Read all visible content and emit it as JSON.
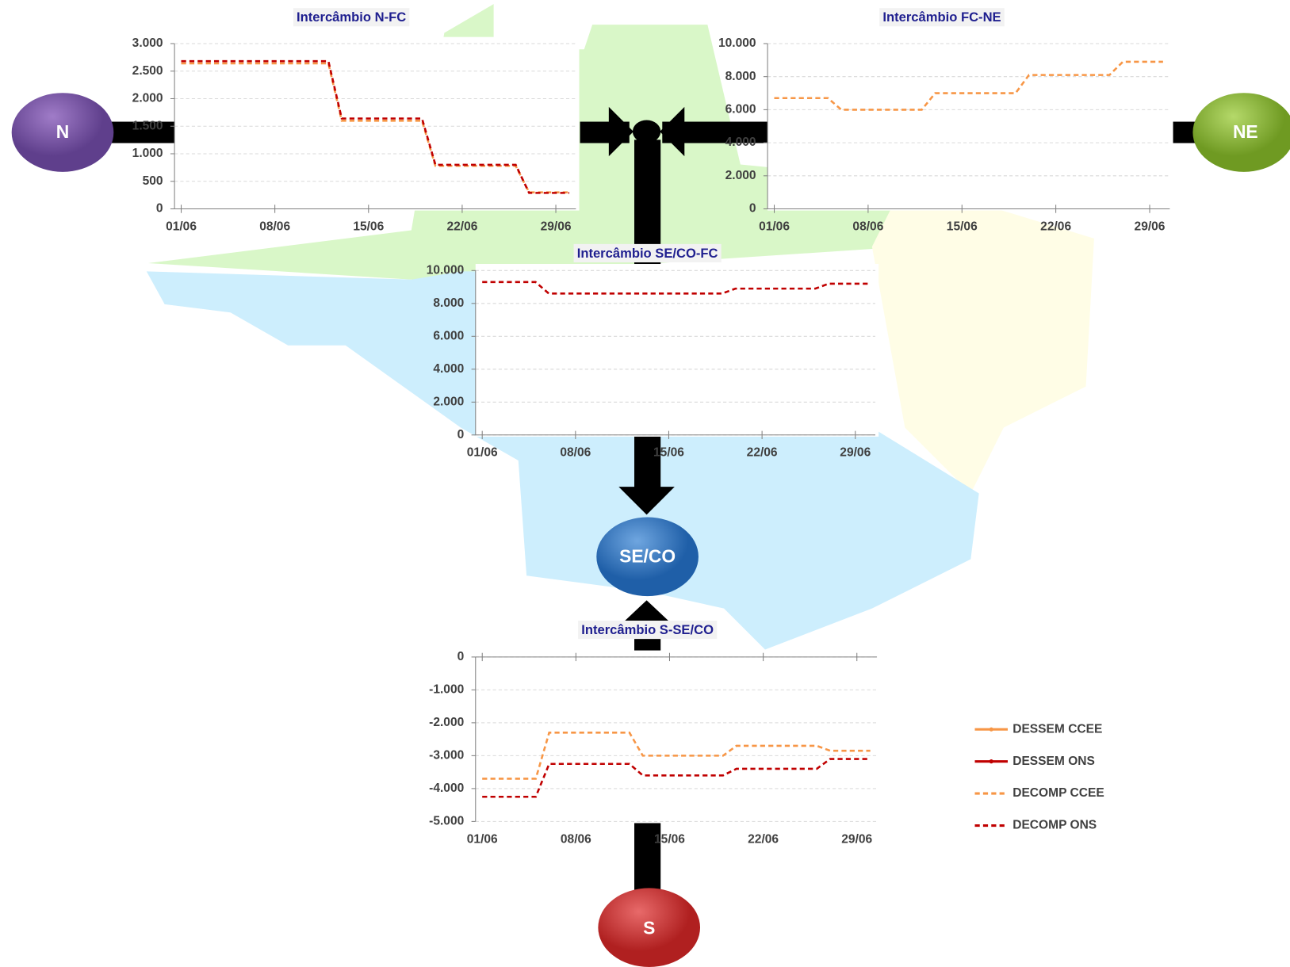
{
  "nodes": [
    {
      "label": "N"
    },
    {
      "label": "NE"
    },
    {
      "label": "SE/CO"
    },
    {
      "label": "S"
    }
  ],
  "chart_data": [
    {
      "type": "line",
      "title": "Intercâmbio N-FC",
      "categories": [
        "01/06",
        null,
        null,
        null,
        null,
        null,
        null,
        "08/06",
        null,
        null,
        null,
        null,
        null,
        null,
        "15/06",
        null,
        null,
        null,
        null,
        null,
        null,
        "22/06",
        null,
        null,
        null,
        null,
        null,
        null,
        "29/06",
        null
      ],
      "series": [
        {
          "name": "DECOMP CCEE",
          "color": "#f79646",
          "line_style": "dashed",
          "values": [
            2640,
            2640,
            2640,
            2640,
            2640,
            2640,
            2640,
            2640,
            2640,
            2640,
            2640,
            2640,
            1600,
            1600,
            1600,
            1600,
            1600,
            1600,
            1600,
            780,
            780,
            780,
            780,
            780,
            780,
            780,
            300,
            300,
            300,
            300
          ]
        },
        {
          "name": "DECOMP ONS",
          "color": "#c00000",
          "line_style": "dashed",
          "values": [
            2680,
            2680,
            2680,
            2680,
            2680,
            2680,
            2680,
            2680,
            2680,
            2680,
            2680,
            2680,
            1640,
            1640,
            1640,
            1640,
            1640,
            1640,
            1640,
            800,
            800,
            800,
            800,
            800,
            800,
            800,
            290,
            290,
            290,
            290
          ]
        }
      ],
      "ylim": [
        0,
        3000
      ],
      "yticks": [
        0,
        500,
        {
          "value": 1000,
          "label": "1.000"
        },
        {
          "value": 1500,
          "label": "1.500"
        },
        {
          "value": 2000,
          "label": "2.000"
        },
        {
          "value": 2500,
          "label": "2.500"
        },
        {
          "value": 3000,
          "label": "3.000"
        }
      ],
      "grid": true
    },
    {
      "type": "line",
      "title": "Intercâmbio FC-NE",
      "categories": [
        "01/06",
        null,
        null,
        null,
        null,
        null,
        null,
        "08/06",
        null,
        null,
        null,
        null,
        null,
        null,
        "15/06",
        null,
        null,
        null,
        null,
        null,
        null,
        "22/06",
        null,
        null,
        null,
        null,
        null,
        null,
        "29/06",
        null
      ],
      "series": [
        {
          "name": "DECOMP CCEE",
          "color": "#f79646",
          "line_style": "dashed",
          "values": [
            6700,
            6700,
            6700,
            6700,
            6700,
            6000,
            6000,
            6000,
            6000,
            6000,
            6000,
            6000,
            7000,
            7000,
            7000,
            7000,
            7000,
            7000,
            7000,
            8100,
            8100,
            8100,
            8100,
            8100,
            8100,
            8100,
            8900,
            8900,
            8900,
            8900
          ]
        }
      ],
      "ylim": [
        0,
        10000
      ],
      "yticks": [
        0,
        {
          "value": 2000,
          "label": "2.000"
        },
        {
          "value": 4000,
          "label": "4.000"
        },
        {
          "value": 6000,
          "label": "6.000"
        },
        {
          "value": 8000,
          "label": "8.000"
        },
        {
          "value": 10000,
          "label": "10.000"
        }
      ],
      "grid": true
    },
    {
      "type": "line",
      "title": "Intercâmbio SE/CO-FC",
      "categories": [
        "01/06",
        null,
        null,
        null,
        null,
        null,
        null,
        "08/06",
        null,
        null,
        null,
        null,
        null,
        null,
        "15/06",
        null,
        null,
        null,
        null,
        null,
        null,
        "22/06",
        null,
        null,
        null,
        null,
        null,
        null,
        "29/06",
        null
      ],
      "series": [
        {
          "name": "DECOMP ONS",
          "color": "#c00000",
          "line_style": "dashed",
          "values": [
            9300,
            9300,
            9300,
            9300,
            9300,
            8600,
            8600,
            8600,
            8600,
            8600,
            8600,
            8600,
            8600,
            8600,
            8600,
            8600,
            8600,
            8600,
            8600,
            8900,
            8900,
            8900,
            8900,
            8900,
            8900,
            8900,
            9200,
            9200,
            9200,
            9200
          ]
        }
      ],
      "ylim": [
        0,
        10000
      ],
      "yticks": [
        0,
        {
          "value": 2000,
          "label": "2.000"
        },
        {
          "value": 4000,
          "label": "4.000"
        },
        {
          "value": 6000,
          "label": "6.000"
        },
        {
          "value": 8000,
          "label": "8.000"
        },
        {
          "value": 10000,
          "label": "10.000"
        }
      ],
      "grid": true
    },
    {
      "type": "line",
      "title": "Intercâmbio S-SE/CO",
      "categories": [
        "01/06",
        null,
        null,
        null,
        null,
        null,
        null,
        "08/06",
        null,
        null,
        null,
        null,
        null,
        null,
        "15/06",
        null,
        null,
        null,
        null,
        null,
        null,
        "22/06",
        null,
        null,
        null,
        null,
        null,
        null,
        "29/06",
        null
      ],
      "series": [
        {
          "name": "DESSEM CCEE",
          "color": "#f79646",
          "line_style": "solid",
          "values": [
            null,
            null,
            null,
            null,
            null,
            null,
            null,
            null,
            null,
            null,
            null,
            null,
            null,
            null,
            null,
            null,
            null,
            null,
            null,
            null,
            null,
            null,
            null,
            null,
            null,
            null,
            null,
            null,
            null,
            null
          ]
        },
        {
          "name": "DESSEM ONS",
          "color": "#c00000",
          "line_style": "solid",
          "values": [
            null,
            null,
            null,
            null,
            null,
            null,
            null,
            null,
            null,
            null,
            null,
            null,
            null,
            null,
            null,
            null,
            null,
            null,
            null,
            null,
            null,
            null,
            null,
            null,
            null,
            null,
            null,
            null,
            null,
            null
          ]
        },
        {
          "name": "DECOMP CCEE",
          "color": "#f79646",
          "line_style": "dashed",
          "values": [
            -3700,
            -3700,
            -3700,
            -3700,
            -3700,
            -2300,
            -2300,
            -2300,
            -2300,
            -2300,
            -2300,
            -2300,
            -3000,
            -3000,
            -3000,
            -3000,
            -3000,
            -3000,
            -3000,
            -2700,
            -2700,
            -2700,
            -2700,
            -2700,
            -2700,
            -2700,
            -2850,
            -2850,
            -2850,
            -2850
          ]
        },
        {
          "name": "DECOMP ONS",
          "color": "#c00000",
          "line_style": "dashed",
          "values": [
            -4250,
            -4250,
            -4250,
            -4250,
            -4250,
            -3250,
            -3250,
            -3250,
            -3250,
            -3250,
            -3250,
            -3250,
            -3600,
            -3600,
            -3600,
            -3600,
            -3600,
            -3600,
            -3600,
            -3400,
            -3400,
            -3400,
            -3400,
            -3400,
            -3400,
            -3400,
            -3100,
            -3100,
            -3100,
            -3100
          ]
        }
      ],
      "ylim": [
        -5000,
        0
      ],
      "yticks": [
        {
          "value": -5000,
          "label": "-5.000"
        },
        {
          "value": -4000,
          "label": "-4.000"
        },
        {
          "value": -3000,
          "label": "-3.000"
        },
        {
          "value": -2000,
          "label": "-2.000"
        },
        {
          "value": -1000,
          "label": "-1.000"
        },
        0
      ],
      "grid": true,
      "legend": "right"
    }
  ]
}
